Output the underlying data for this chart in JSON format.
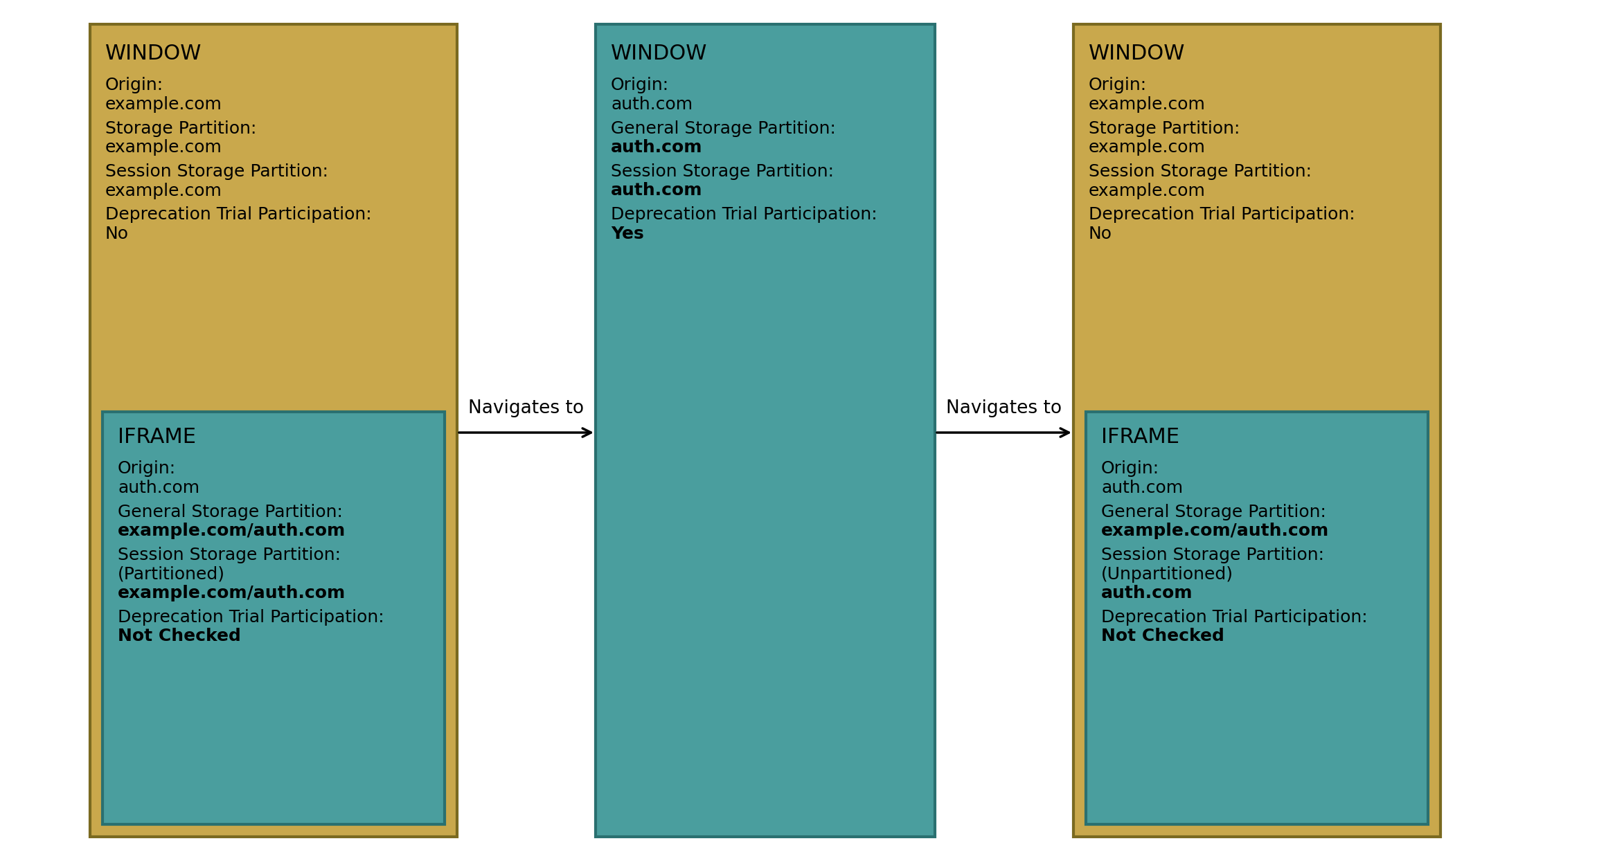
{
  "background_color": "#ffffff",
  "color_gold": "#C9A84C",
  "color_teal": "#4A9E9E",
  "box1_window": {
    "title": "WINDOW",
    "lines": [
      {
        "label": "Origin:",
        "value": "example.com",
        "bold": false
      },
      {
        "label": "Storage Partition:",
        "value": "example.com",
        "bold": false
      },
      {
        "label": "Session Storage Partition:",
        "value": "example.com",
        "bold": false
      },
      {
        "label": "Deprecation Trial Participation:",
        "value": "No",
        "bold": false
      }
    ]
  },
  "box1_iframe": {
    "title": "IFRAME",
    "lines": [
      {
        "label": "Origin:",
        "value": "auth.com",
        "bold": false
      },
      {
        "label": "General Storage Partition:",
        "value": "example.com/auth.com",
        "bold": true
      },
      {
        "label": "Session Storage Partition:",
        "value2": "(Partitioned)",
        "value": "example.com/auth.com",
        "bold": true
      },
      {
        "label": "Deprecation Trial Participation:",
        "value": "Not Checked",
        "bold": true
      }
    ]
  },
  "box2_window": {
    "title": "WINDOW",
    "lines": [
      {
        "label": "Origin:",
        "value": "auth.com",
        "bold": false
      },
      {
        "label": "General Storage Partition:",
        "value": "auth.com",
        "bold": true
      },
      {
        "label": "Session Storage Partition:",
        "value": "auth.com",
        "bold": true
      },
      {
        "label": "Deprecation Trial Participation:",
        "value": "Yes",
        "bold": true
      }
    ]
  },
  "box3_window": {
    "title": "WINDOW",
    "lines": [
      {
        "label": "Origin:",
        "value": "example.com",
        "bold": false
      },
      {
        "label": "Storage Partition:",
        "value": "example.com",
        "bold": false
      },
      {
        "label": "Session Storage Partition:",
        "value": "example.com",
        "bold": false
      },
      {
        "label": "Deprecation Trial Participation:",
        "value": "No",
        "bold": false
      }
    ]
  },
  "box3_iframe": {
    "title": "IFRAME",
    "lines": [
      {
        "label": "Origin:",
        "value": "auth.com",
        "bold": false
      },
      {
        "label": "General Storage Partition:",
        "value": "example.com/auth.com",
        "bold": true
      },
      {
        "label": "Session Storage Partition:",
        "value2": "(Unpartitioned)",
        "value": "auth.com",
        "bold": true
      },
      {
        "label": "Deprecation Trial Participation:",
        "value": "Not Checked",
        "bold": true
      }
    ]
  },
  "arrow1_label": "Navigates to",
  "arrow2_label": "Navigates to",
  "font_size_title": 22,
  "font_size_label": 18,
  "font_size_arrow": 19
}
